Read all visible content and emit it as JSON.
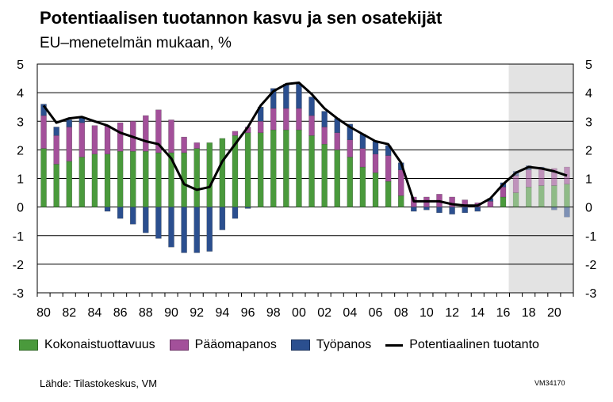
{
  "title": "Potentiaalisen tuotannon kasvu ja sen osatekijät",
  "subtitle": "EU–menetelmän mukaan, %",
  "source": "Lähde: Tilastokeskus, VM",
  "code": "VM34170",
  "colors": {
    "kokonaistuottavuus": "#4a9a3c",
    "paaomapanos": "#a3509a",
    "tyopanos": "#2b4f8f",
    "line": "#000000",
    "forecast_shade": "#e3e3e3",
    "grid": "#000000"
  },
  "chart_data": {
    "type": "bar",
    "stacked": true,
    "years": [
      1980,
      1981,
      1982,
      1983,
      1984,
      1985,
      1986,
      1987,
      1988,
      1989,
      1990,
      1991,
      1992,
      1993,
      1994,
      1995,
      1996,
      1997,
      1998,
      1999,
      2000,
      2001,
      2002,
      2003,
      2004,
      2005,
      2006,
      2007,
      2008,
      2009,
      2010,
      2011,
      2012,
      2013,
      2014,
      2015,
      2016,
      2017,
      2018,
      2019,
      2020,
      2021
    ],
    "x_tick_labels": [
      "80",
      "82",
      "84",
      "86",
      "88",
      "90",
      "92",
      "94",
      "96",
      "98",
      "00",
      "02",
      "04",
      "06",
      "08",
      "10",
      "12",
      "14",
      "16",
      "18",
      "20"
    ],
    "y_ticks": [
      5,
      4,
      3,
      2,
      1,
      0,
      -1,
      -2,
      -3
    ],
    "ylim": [
      -3,
      5
    ],
    "forecast_from": 2017,
    "series": [
      {
        "name": "Kokonaistuottavuus",
        "key": "kokonaistuottavuus",
        "values": [
          2.05,
          1.5,
          1.6,
          1.75,
          1.85,
          1.85,
          1.95,
          1.95,
          1.95,
          1.9,
          1.9,
          1.9,
          2.05,
          2.25,
          2.4,
          2.5,
          2.6,
          2.6,
          2.7,
          2.7,
          2.7,
          2.5,
          2.2,
          2.0,
          1.75,
          1.4,
          1.2,
          0.9,
          0.4,
          0.0,
          0.0,
          0.0,
          0.0,
          0.0,
          0.0,
          0.0,
          0.35,
          0.5,
          0.7,
          0.75,
          0.75,
          0.8
        ]
      },
      {
        "name": "Pääomapanos",
        "key": "paaomapanos",
        "values": [
          1.15,
          1.0,
          1.2,
          1.2,
          1.0,
          1.0,
          1.0,
          1.05,
          1.25,
          1.5,
          1.15,
          0.55,
          0.2,
          0.0,
          0.0,
          0.15,
          0.2,
          0.4,
          0.75,
          0.75,
          0.75,
          0.7,
          0.6,
          0.6,
          0.6,
          0.65,
          0.65,
          0.9,
          0.9,
          0.35,
          0.35,
          0.45,
          0.35,
          0.25,
          0.15,
          0.2,
          0.35,
          0.6,
          0.6,
          0.6,
          0.6,
          0.6
        ]
      },
      {
        "name": "Työpanos",
        "key": "tyopanos",
        "values": [
          0.4,
          0.3,
          0.25,
          0.2,
          0.0,
          -0.15,
          -0.4,
          -0.6,
          -0.9,
          -1.1,
          -1.4,
          -1.6,
          -1.6,
          -1.55,
          -0.8,
          -0.4,
          -0.05,
          0.5,
          0.7,
          0.85,
          0.85,
          0.65,
          0.55,
          0.5,
          0.55,
          0.5,
          0.45,
          0.35,
          0.25,
          -0.15,
          -0.1,
          -0.2,
          -0.25,
          -0.2,
          -0.15,
          0.1,
          0.15,
          0.15,
          0.15,
          0.05,
          -0.1,
          -0.35
        ]
      },
      {
        "name": "Potentiaalinen tuotanto",
        "key": "line",
        "type": "line",
        "values": [
          3.55,
          2.95,
          3.1,
          3.15,
          3.0,
          2.85,
          2.6,
          2.45,
          2.3,
          2.2,
          1.7,
          0.8,
          0.6,
          0.7,
          1.6,
          2.2,
          2.8,
          3.55,
          4.05,
          4.3,
          4.35,
          3.95,
          3.45,
          3.1,
          2.8,
          2.55,
          2.3,
          2.2,
          1.55,
          0.2,
          0.2,
          0.2,
          0.1,
          0.05,
          0.05,
          0.3,
          0.8,
          1.2,
          1.4,
          1.35,
          1.25,
          1.1
        ]
      }
    ]
  }
}
